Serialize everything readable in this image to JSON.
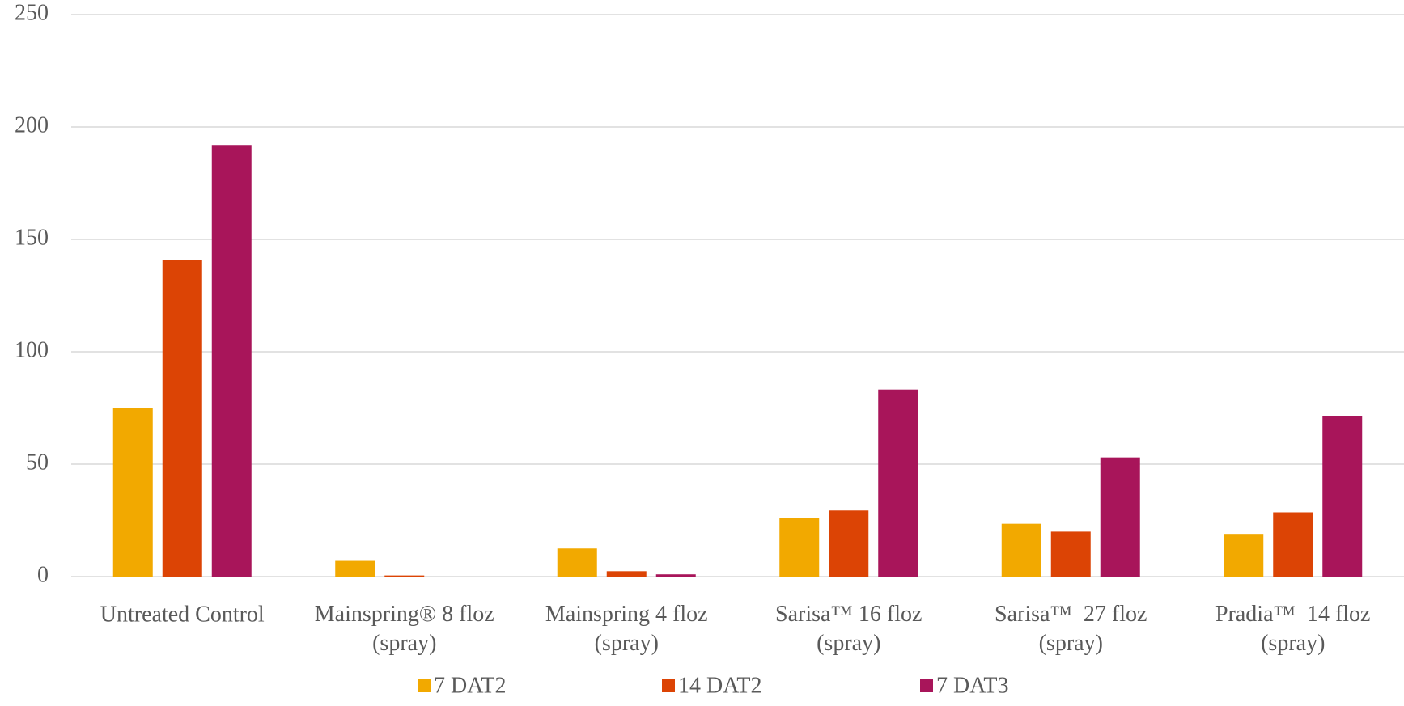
{
  "chart_data": {
    "type": "bar",
    "categories": [
      "Untreated Control",
      "Mainspring® 8 floz\n(spray)",
      "Mainspring 4 floz\n(spray)",
      "Sarisa™ 16 floz\n(spray)",
      "Sarisa™  27 floz\n(spray)",
      "Pradia™  14 floz\n(spray)"
    ],
    "series": [
      {
        "name": "7 DAT2",
        "color": "#f2a900",
        "values": [
          75,
          7,
          12.5,
          26,
          23.5,
          19
        ]
      },
      {
        "name": "14 DAT2",
        "color": "#dc4405",
        "values": [
          141,
          0.5,
          2.4,
          29.4,
          20,
          28.6
        ]
      },
      {
        "name": "7 DAT3",
        "color": "#a8155a",
        "values": [
          192,
          0,
          1,
          83.2,
          53,
          71.4
        ]
      }
    ],
    "ylim": [
      0,
      250
    ],
    "yticks": [
      0,
      50,
      100,
      150,
      200,
      250
    ],
    "grid": true,
    "legend": "bottom"
  }
}
